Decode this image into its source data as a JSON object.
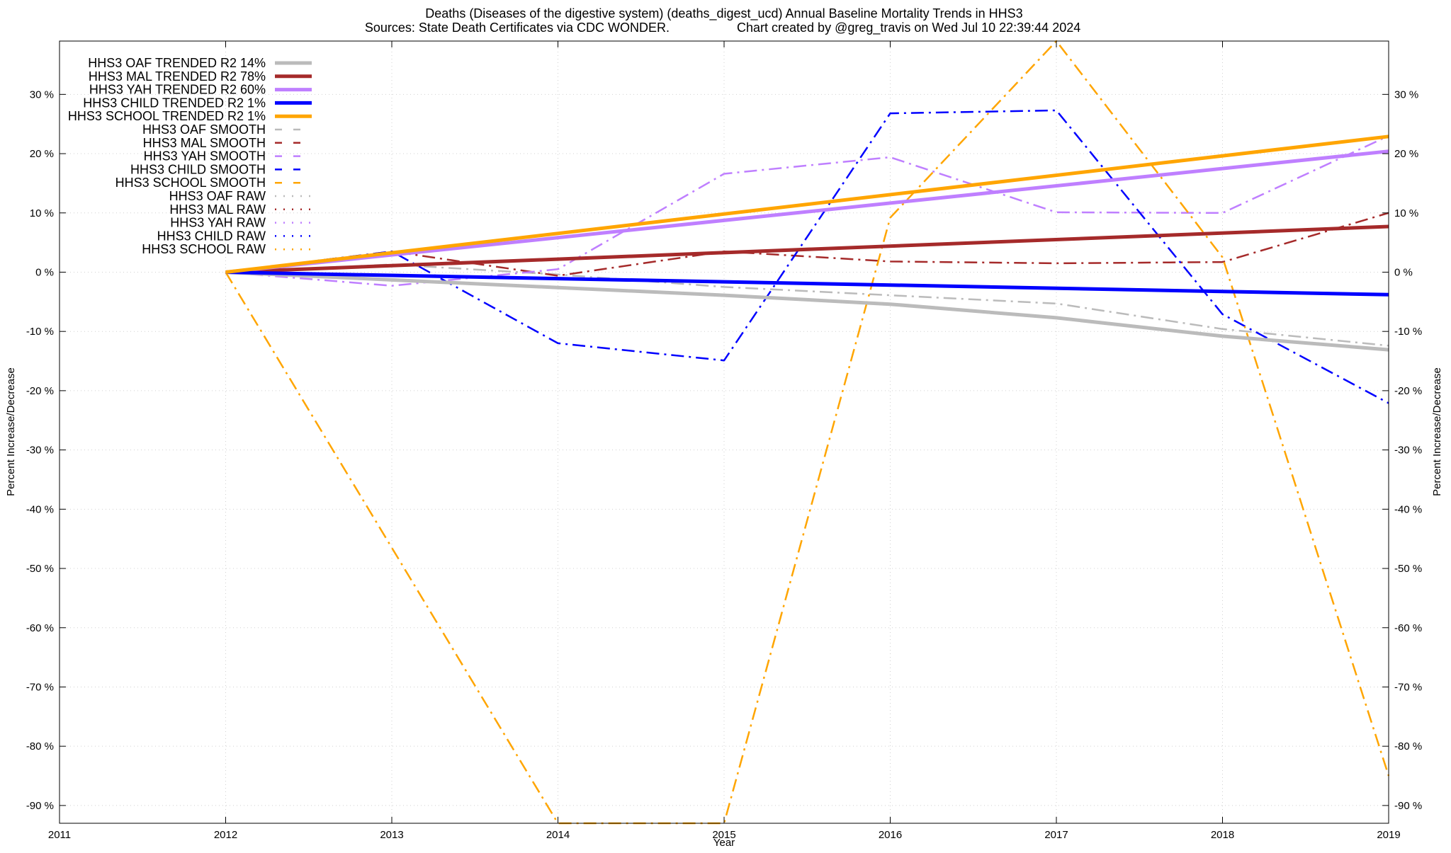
{
  "chart_data": {
    "type": "line",
    "title": "Deaths (Diseases of the digestive system) (deaths_digest_ucd)  Annual Baseline Mortality Trends in HHS3",
    "subtitle_left": "Sources: State Death Certificates via CDC WONDER.",
    "subtitle_right": "Chart created by @greg_travis on Wed Jul 10 22:39:44 2024",
    "xlabel": "Year",
    "ylabel": "Percent Increase/Decrease",
    "ylabel_right": "Percent Increase/Decrease",
    "xlim": [
      2011,
      2019
    ],
    "ylim": [
      -93,
      39
    ],
    "x_ticks": [
      2011,
      2012,
      2013,
      2014,
      2015,
      2016,
      2017,
      2018,
      2019
    ],
    "x_tick_labels": [
      "2011",
      "2012",
      "2013",
      "2014",
      "2015",
      "2016",
      "2017",
      "2018",
      "2019"
    ],
    "y_ticks": [
      30,
      20,
      10,
      0,
      -10,
      -20,
      -30,
      -40,
      -50,
      -60,
      -70,
      -80,
      -90
    ],
    "y_tick_labels": [
      "30 %",
      "20 %",
      "10 %",
      "0 %",
      "-10 %",
      "-20 %",
      "-30 %",
      "-40 %",
      "-50 %",
      "-60 %",
      "-70 %",
      "-80 %",
      "-90 %"
    ],
    "grid": true,
    "legend_position": "top-left",
    "series": [
      {
        "name": "HHS3 OAF TRENDED R2",
        "r2": "14%",
        "color": "#bbbbbb",
        "style": "solid",
        "width": 5,
        "x": [
          2012,
          2013,
          2014,
          2015,
          2016,
          2017,
          2018,
          2019
        ],
        "y": [
          0,
          -1.3,
          -2.6,
          -3.9,
          -5.4,
          -7.7,
          -10.8,
          -13.1
        ]
      },
      {
        "name": "HHS3 MAL TRENDED R2",
        "r2": "78%",
        "color": "#a52a2a",
        "style": "solid",
        "width": 5,
        "x": [
          2012,
          2019
        ],
        "y": [
          0,
          7.7
        ]
      },
      {
        "name": "HHS3 YAH TRENDED R2",
        "r2": "60%",
        "color": "#bf7fff",
        "style": "solid",
        "width": 5,
        "x": [
          2012,
          2019
        ],
        "y": [
          0,
          20.4
        ]
      },
      {
        "name": "HHS3 CHILD TRENDED R2",
        "r2": "1%",
        "color": "#0000ff",
        "style": "solid",
        "width": 5,
        "x": [
          2012,
          2019
        ],
        "y": [
          0,
          -3.8
        ]
      },
      {
        "name": "HHS3 SCHOOL TRENDED R2",
        "r2": "1%",
        "color": "#ffa500",
        "style": "solid",
        "width": 5,
        "x": [
          2012,
          2019
        ],
        "y": [
          0,
          22.9
        ]
      },
      {
        "name": "HHS3 OAF SMOOTH",
        "r2": "",
        "color": "#bbbbbb",
        "style": "dashdot",
        "width": 2.5,
        "x": [
          2012,
          2013,
          2014,
          2015,
          2016,
          2017,
          2018,
          2019
        ],
        "y": [
          0,
          1.3,
          -0.4,
          -2.5,
          -3.9,
          -5.3,
          -9.6,
          -12.4
        ]
      },
      {
        "name": "HHS3 MAL SMOOTH",
        "r2": "",
        "color": "#a52a2a",
        "style": "dashdot",
        "width": 2.5,
        "x": [
          2012,
          2013,
          2014,
          2015,
          2016,
          2017,
          2018,
          2019
        ],
        "y": [
          0,
          3.5,
          -0.6,
          3.5,
          1.8,
          1.5,
          1.7,
          10.0
        ]
      },
      {
        "name": "HHS3 YAH SMOOTH",
        "r2": "",
        "color": "#bf7fff",
        "style": "dashdot",
        "width": 2.5,
        "x": [
          2012,
          2013,
          2014,
          2015,
          2016,
          2017,
          2018,
          2019
        ],
        "y": [
          0,
          -2.3,
          0.5,
          16.6,
          19.4,
          10.1,
          10.0,
          23.0
        ]
      },
      {
        "name": "HHS3 CHILD SMOOTH",
        "r2": "",
        "color": "#0000ff",
        "style": "dashdot",
        "width": 2.5,
        "x": [
          2012,
          2013,
          2014,
          2015,
          2016,
          2017,
          2018,
          2019
        ],
        "y": [
          0,
          3.5,
          -12.0,
          -14.9,
          26.8,
          27.3,
          -7.1,
          -22.1
        ]
      },
      {
        "name": "HHS3 SCHOOL SMOOTH",
        "r2": "",
        "color": "#ffa500",
        "style": "dashdot",
        "width": 2.5,
        "x": [
          2012,
          2014,
          2015,
          2016,
          2017,
          2018,
          2019
        ],
        "y": [
          0,
          -93,
          -93,
          9.2,
          39.0,
          2.5,
          -85.0
        ]
      },
      {
        "name": "HHS3 OAF RAW",
        "r2": "",
        "color": "#bbbbbb",
        "style": "dotted",
        "width": 2,
        "x": [],
        "y": []
      },
      {
        "name": "HHS3 MAL RAW",
        "r2": "",
        "color": "#a52a2a",
        "style": "dotted",
        "width": 2,
        "x": [],
        "y": []
      },
      {
        "name": "HHS3 YAH RAW",
        "r2": "",
        "color": "#bf7fff",
        "style": "dotted",
        "width": 2,
        "x": [],
        "y": []
      },
      {
        "name": "HHS3 CHILD RAW",
        "r2": "",
        "color": "#0000ff",
        "style": "dotted",
        "width": 2,
        "x": [],
        "y": []
      },
      {
        "name": "HHS3 SCHOOL RAW",
        "r2": "",
        "color": "#ffa500",
        "style": "dotted",
        "width": 2,
        "x": [],
        "y": []
      }
    ]
  }
}
